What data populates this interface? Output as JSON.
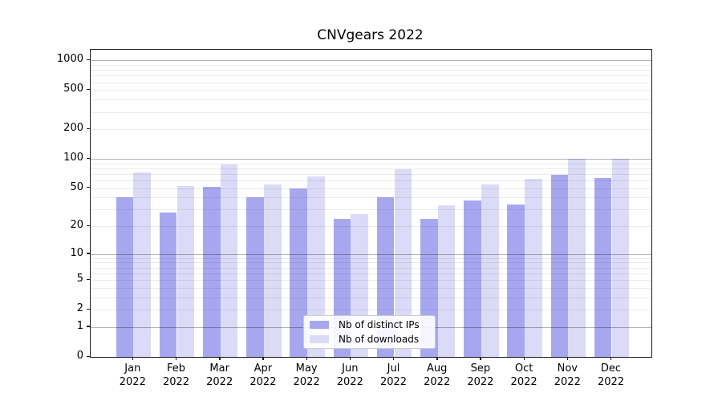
{
  "chart_data": {
    "type": "bar",
    "title": "CNVgears 2022",
    "categories": [
      {
        "month": "Jan",
        "year": "2022"
      },
      {
        "month": "Feb",
        "year": "2022"
      },
      {
        "month": "Mar",
        "year": "2022"
      },
      {
        "month": "Apr",
        "year": "2022"
      },
      {
        "month": "May",
        "year": "2022"
      },
      {
        "month": "Jun",
        "year": "2022"
      },
      {
        "month": "Jul",
        "year": "2022"
      },
      {
        "month": "Aug",
        "year": "2022"
      },
      {
        "month": "Sep",
        "year": "2022"
      },
      {
        "month": "Oct",
        "year": "2022"
      },
      {
        "month": "Nov",
        "year": "2022"
      },
      {
        "month": "Dec",
        "year": "2022"
      }
    ],
    "series": [
      {
        "name": "Nb of distinct IPs",
        "color": "#a7a7f0",
        "values": [
          40,
          28,
          52,
          40,
          50,
          24,
          40,
          24,
          37,
          34,
          68,
          63
        ]
      },
      {
        "name": "Nb of downloads",
        "color": "#dbdbf8",
        "values": [
          72,
          53,
          87,
          55,
          66,
          27,
          78,
          33,
          55,
          62,
          100,
          100
        ]
      }
    ],
    "xlabel": "",
    "ylabel": "",
    "y_scale": "log1p",
    "ylim": [
      0,
      1282
    ],
    "y_tick_values": [
      0,
      1,
      2,
      5,
      10,
      20,
      50,
      100,
      200,
      500,
      1000
    ],
    "y_tick_labels": [
      "0",
      "1",
      "2",
      "5",
      "10",
      "20",
      "50",
      "100",
      "200",
      "500",
      "1000"
    ],
    "grid": "on",
    "grid_major_values": [
      1,
      10,
      100,
      1000
    ],
    "grid_minor_values": [
      2,
      3,
      4,
      5,
      6,
      7,
      8,
      9,
      20,
      30,
      40,
      50,
      60,
      70,
      80,
      90,
      200,
      300,
      400,
      500,
      600,
      700,
      800,
      900
    ],
    "legend_position": "lower-center-inside"
  }
}
